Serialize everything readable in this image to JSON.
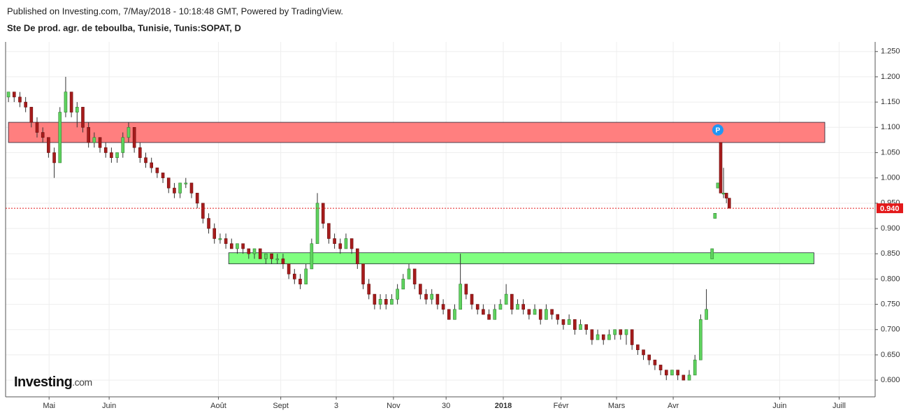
{
  "chart_data": {
    "type": "candlestick",
    "source": "Published on Investing.com, 7/May/2018 - 10:18:48 GMT, Powered by TradingView.",
    "title": "Ste De prod. agr. de teboulba, Tunisie, Tunis:SOPAT, D",
    "logo": {
      "name": "Investing",
      "suffix": ".com"
    },
    "up_color": "#5fd35f",
    "down_color": "#a61c1c",
    "grid": true,
    "xlim": [
      -0.5,
      151.5
    ],
    "xticks": [
      {
        "value": 7.1,
        "label": "Mai"
      },
      {
        "value": 17.6,
        "label": "Juin"
      },
      {
        "value": 36.7,
        "label": "Août"
      },
      {
        "value": 47.6,
        "label": "Sept"
      },
      {
        "value": 57.3,
        "label": "3"
      },
      {
        "value": 67.3,
        "label": "Nov"
      },
      {
        "value": 76.5,
        "label": "30"
      },
      {
        "value": 86.5,
        "label": "2018"
      },
      {
        "value": 96.6,
        "label": "Févr"
      },
      {
        "value": 106.3,
        "label": "Mars"
      },
      {
        "value": 116.2,
        "label": "Avr"
      },
      {
        "value": 134.8,
        "label": "Juin"
      },
      {
        "value": 145.2,
        "label": "Juill"
      }
    ],
    "ylim": [
      0.567,
      1.269
    ],
    "yticks": [
      {
        "value": 0.6,
        "label": "0.600"
      },
      {
        "value": 0.65,
        "label": "0.650"
      },
      {
        "value": 0.7,
        "label": "0.700"
      },
      {
        "value": 0.75,
        "label": "0.750"
      },
      {
        "value": 0.8,
        "label": "0.800"
      },
      {
        "value": 0.85,
        "label": "0.850"
      },
      {
        "value": 0.9,
        "label": "0.900"
      },
      {
        "value": 0.95,
        "label": "0.950"
      },
      {
        "value": 1.0,
        "label": "1.000"
      },
      {
        "value": 1.05,
        "label": "1.050"
      },
      {
        "value": 1.1,
        "label": "1.100"
      },
      {
        "value": 1.15,
        "label": "1.150"
      },
      {
        "value": 1.2,
        "label": "1.200"
      },
      {
        "value": 1.25,
        "label": "1.250"
      }
    ],
    "last": {
      "value": 0.94,
      "label": "0.940",
      "color": "#e3191b"
    },
    "zones": [
      {
        "x": [
          0,
          142.7
        ],
        "y": [
          1.07,
          1.11
        ],
        "color": "#ff7f7f"
      },
      {
        "x": [
          38.5,
          140.8
        ],
        "y": [
          0.83,
          0.852
        ],
        "color": "#80ff80"
      }
    ],
    "x": [
      0,
      1,
      2,
      3,
      4,
      5,
      6,
      7,
      8,
      9,
      10,
      11,
      12,
      13,
      14,
      15,
      16,
      17,
      18,
      19,
      20,
      21,
      22,
      23,
      24,
      25,
      26,
      27,
      28,
      29,
      30,
      31,
      32,
      33,
      34,
      35,
      36,
      37,
      38,
      39,
      40,
      41,
      42,
      43,
      44,
      45,
      46,
      47,
      48,
      49,
      50,
      51,
      52,
      53,
      54,
      55,
      56,
      57,
      58,
      59,
      60,
      61,
      62,
      63,
      64,
      65,
      66,
      67,
      68,
      69,
      70,
      71,
      72,
      73,
      74,
      75,
      76,
      77,
      78,
      79,
      80,
      81,
      82,
      83,
      84,
      85,
      86,
      87,
      88,
      89,
      90,
      91,
      92,
      93,
      94,
      95,
      96,
      97,
      98,
      99,
      100,
      101,
      102,
      103,
      104,
      105,
      106,
      107,
      108,
      109,
      110,
      111,
      112,
      113,
      114,
      115,
      116,
      117,
      118,
      119,
      120,
      121,
      122,
      123,
      123.5,
      124,
      124.5,
      125,
      125.5,
      126
    ],
    "open": [
      1.16,
      1.17,
      1.16,
      1.15,
      1.14,
      1.11,
      1.09,
      1.08,
      1.05,
      1.03,
      1.13,
      1.17,
      1.13,
      1.14,
      1.1,
      1.07,
      1.08,
      1.06,
      1.05,
      1.04,
      1.05,
      1.08,
      1.1,
      1.06,
      1.04,
      1.03,
      1.02,
      1.01,
      1.0,
      0.98,
      0.97,
      0.99,
      0.99,
      0.97,
      0.95,
      0.92,
      0.9,
      0.88,
      0.88,
      0.87,
      0.86,
      0.87,
      0.86,
      0.85,
      0.86,
      0.84,
      0.85,
      0.84,
      0.84,
      0.83,
      0.81,
      0.8,
      0.79,
      0.82,
      0.87,
      0.95,
      0.91,
      0.88,
      0.87,
      0.86,
      0.88,
      0.86,
      0.83,
      0.79,
      0.77,
      0.75,
      0.76,
      0.75,
      0.76,
      0.78,
      0.8,
      0.82,
      0.79,
      0.77,
      0.76,
      0.77,
      0.75,
      0.74,
      0.72,
      0.74,
      0.79,
      0.77,
      0.75,
      0.74,
      0.73,
      0.72,
      0.74,
      0.75,
      0.77,
      0.74,
      0.75,
      0.74,
      0.73,
      0.74,
      0.72,
      0.74,
      0.73,
      0.72,
      0.71,
      0.72,
      0.7,
      0.71,
      0.7,
      0.68,
      0.69,
      0.68,
      0.69,
      0.7,
      0.69,
      0.7,
      0.67,
      0.66,
      0.65,
      0.64,
      0.63,
      0.62,
      0.61,
      0.62,
      0.61,
      0.6,
      0.61,
      0.64,
      0.72,
      0.84,
      0.92,
      0.98,
      1.07,
      0.97,
      0.97,
      0.96
    ],
    "high": [
      1.17,
      1.17,
      1.17,
      1.16,
      1.14,
      1.12,
      1.1,
      1.08,
      1.06,
      1.14,
      1.2,
      1.17,
      1.15,
      1.14,
      1.11,
      1.09,
      1.08,
      1.07,
      1.06,
      1.05,
      1.09,
      1.11,
      1.1,
      1.07,
      1.05,
      1.04,
      1.02,
      1.01,
      1.0,
      0.99,
      0.99,
      1.0,
      0.99,
      0.97,
      0.95,
      0.93,
      0.91,
      0.89,
      0.89,
      0.88,
      0.87,
      0.87,
      0.86,
      0.86,
      0.86,
      0.85,
      0.85,
      0.85,
      0.85,
      0.83,
      0.82,
      0.81,
      0.83,
      0.88,
      0.97,
      0.95,
      0.91,
      0.89,
      0.88,
      0.89,
      0.88,
      0.86,
      0.83,
      0.8,
      0.77,
      0.77,
      0.77,
      0.77,
      0.79,
      0.81,
      0.83,
      0.82,
      0.79,
      0.78,
      0.78,
      0.77,
      0.76,
      0.74,
      0.75,
      0.85,
      0.79,
      0.77,
      0.75,
      0.75,
      0.74,
      0.75,
      0.76,
      0.79,
      0.77,
      0.76,
      0.76,
      0.74,
      0.75,
      0.74,
      0.75,
      0.74,
      0.73,
      0.72,
      0.73,
      0.72,
      0.72,
      0.71,
      0.7,
      0.7,
      0.69,
      0.7,
      0.7,
      0.7,
      0.7,
      0.7,
      0.67,
      0.66,
      0.65,
      0.64,
      0.63,
      0.62,
      0.62,
      0.62,
      0.61,
      0.62,
      0.65,
      0.73,
      0.78,
      0.86,
      0.93,
      0.99,
      1.07,
      1.02,
      0.97,
      0.96
    ],
    "low": [
      1.15,
      1.15,
      1.14,
      1.13,
      1.1,
      1.08,
      1.07,
      1.04,
      1.0,
      1.03,
      1.12,
      1.12,
      1.1,
      1.09,
      1.06,
      1.06,
      1.05,
      1.04,
      1.03,
      1.03,
      1.04,
      1.07,
      1.05,
      1.03,
      1.02,
      1.01,
      1.0,
      0.99,
      0.97,
      0.96,
      0.96,
      0.98,
      0.96,
      0.94,
      0.91,
      0.89,
      0.87,
      0.87,
      0.86,
      0.86,
      0.85,
      0.85,
      0.84,
      0.84,
      0.84,
      0.83,
      0.83,
      0.83,
      0.82,
      0.8,
      0.79,
      0.78,
      0.79,
      0.82,
      0.87,
      0.9,
      0.87,
      0.86,
      0.85,
      0.86,
      0.85,
      0.82,
      0.78,
      0.76,
      0.74,
      0.74,
      0.74,
      0.75,
      0.75,
      0.78,
      0.8,
      0.78,
      0.76,
      0.75,
      0.75,
      0.74,
      0.73,
      0.72,
      0.72,
      0.74,
      0.76,
      0.74,
      0.73,
      0.73,
      0.72,
      0.72,
      0.74,
      0.75,
      0.73,
      0.74,
      0.73,
      0.72,
      0.73,
      0.71,
      0.72,
      0.72,
      0.71,
      0.7,
      0.71,
      0.69,
      0.7,
      0.69,
      0.67,
      0.68,
      0.67,
      0.68,
      0.68,
      0.68,
      0.67,
      0.66,
      0.65,
      0.64,
      0.63,
      0.62,
      0.61,
      0.6,
      0.61,
      0.6,
      0.6,
      0.6,
      0.61,
      0.64,
      0.72,
      0.84,
      0.92,
      0.98,
      0.97,
      0.96,
      0.95,
      0.94
    ],
    "close": [
      1.17,
      1.16,
      1.15,
      1.14,
      1.11,
      1.09,
      1.08,
      1.05,
      1.03,
      1.13,
      1.17,
      1.13,
      1.14,
      1.1,
      1.07,
      1.08,
      1.06,
      1.05,
      1.04,
      1.05,
      1.08,
      1.1,
      1.06,
      1.04,
      1.03,
      1.02,
      1.01,
      1.0,
      0.98,
      0.97,
      0.99,
      0.99,
      0.97,
      0.95,
      0.92,
      0.9,
      0.88,
      0.88,
      0.87,
      0.86,
      0.87,
      0.86,
      0.85,
      0.86,
      0.84,
      0.85,
      0.84,
      0.84,
      0.83,
      0.81,
      0.8,
      0.79,
      0.82,
      0.87,
      0.95,
      0.91,
      0.88,
      0.87,
      0.86,
      0.88,
      0.86,
      0.83,
      0.79,
      0.77,
      0.75,
      0.76,
      0.75,
      0.76,
      0.78,
      0.8,
      0.82,
      0.79,
      0.77,
      0.76,
      0.77,
      0.75,
      0.74,
      0.72,
      0.74,
      0.79,
      0.77,
      0.75,
      0.74,
      0.73,
      0.72,
      0.74,
      0.75,
      0.77,
      0.74,
      0.75,
      0.74,
      0.73,
      0.74,
      0.72,
      0.74,
      0.73,
      0.72,
      0.71,
      0.72,
      0.7,
      0.71,
      0.7,
      0.68,
      0.69,
      0.68,
      0.69,
      0.7,
      0.69,
      0.7,
      0.67,
      0.66,
      0.65,
      0.64,
      0.63,
      0.62,
      0.61,
      0.62,
      0.61,
      0.6,
      0.61,
      0.64,
      0.72,
      0.74,
      0.86,
      0.93,
      0.99,
      0.97,
      0.97,
      0.96,
      0.94
    ]
  }
}
